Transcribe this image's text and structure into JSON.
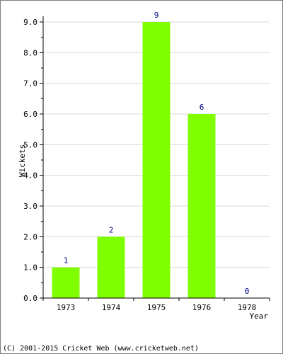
{
  "chart_data": {
    "type": "bar",
    "categories": [
      "1973",
      "1974",
      "1975",
      "1976",
      "1978"
    ],
    "values": [
      1,
      2,
      9,
      6,
      0
    ],
    "value_labels": [
      "1",
      "2",
      "9",
      "6",
      "0"
    ],
    "title": "",
    "xlabel": "Year",
    "ylabel": "Wickets",
    "ylim": [
      0,
      9
    ],
    "yticks": [
      "0.0",
      "1.0",
      "2.0",
      "3.0",
      "4.0",
      "5.0",
      "6.0",
      "7.0",
      "8.0",
      "9.0"
    ],
    "grid": true,
    "legend": "none"
  },
  "colors": {
    "bar": "#80ff00",
    "grid": "#d9d9d9",
    "value_label": "#000080",
    "text": "#000000",
    "frame": "#7f7f7f"
  },
  "footer": {
    "text": "(C) 2001-2015 Cricket Web (www.cricketweb.net)"
  }
}
